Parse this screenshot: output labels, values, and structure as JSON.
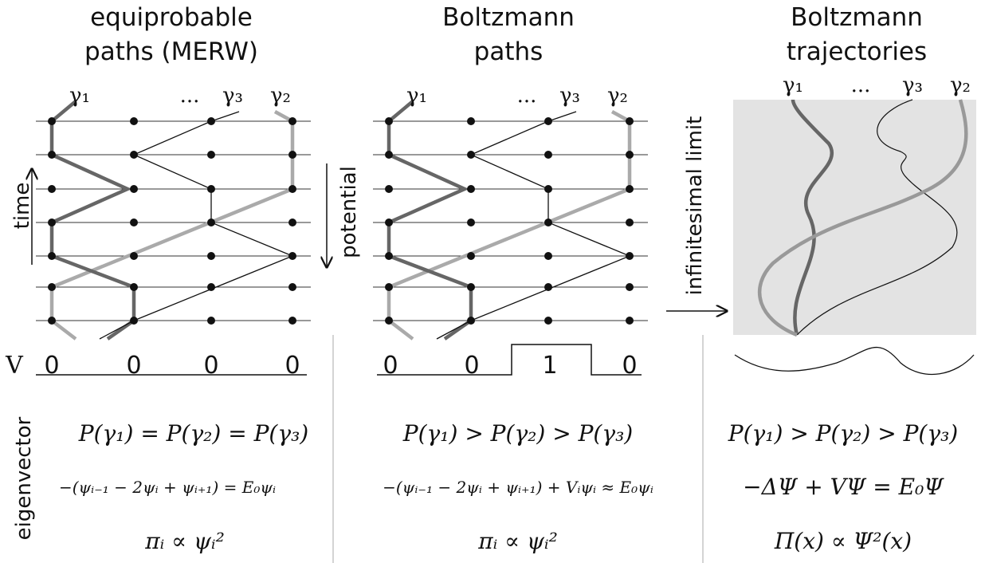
{
  "left_label": "eigenvector",
  "panels": [
    {
      "title": [
        "equiprobable",
        "paths (MERW)"
      ],
      "gammas": [
        "γ₁",
        "...",
        "γ₃",
        "γ₂"
      ],
      "side_label": "time",
      "V": [
        "V",
        "0",
        "0",
        "0",
        "0"
      ],
      "equations": [
        "P(γ₁) = P(γ₂) = P(γ₃)",
        "−(ψᵢ₋₁ − 2ψᵢ + ψᵢ₊₁) = E₀ψᵢ",
        "πᵢ ∝ ψᵢ²"
      ]
    },
    {
      "title": [
        "Boltzmann",
        "paths"
      ],
      "gammas": [
        "γ₁",
        "...",
        "γ₃",
        "γ₂"
      ],
      "side_label": "potential",
      "V": [
        "0",
        "0",
        "1",
        "0"
      ],
      "equations": [
        "P(γ₁) > P(γ₂) > P(γ₃)",
        "−(ψᵢ₋₁ − 2ψᵢ + ψᵢ₊₁) + Vᵢψᵢ ≈ E₀ψᵢ",
        "πᵢ ∝ ψᵢ²"
      ]
    },
    {
      "title": [
        "Boltzmann",
        "trajectories"
      ],
      "gammas": [
        "γ₁",
        "...",
        "γ₃",
        "γ₂"
      ],
      "side_label": "infinitesimal limit",
      "equations": [
        "P(γ₁) > P(γ₂) > P(γ₃)",
        "−ΔΨ + VΨ = E₀Ψ",
        "Π(x) ∝ Ψ²(x)"
      ]
    }
  ]
}
